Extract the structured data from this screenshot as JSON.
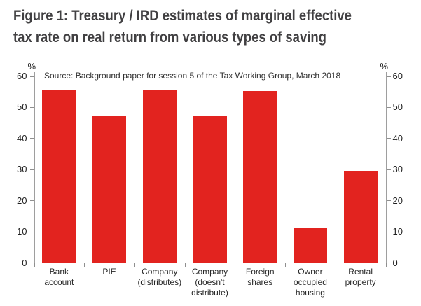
{
  "title_lines": [
    "Figure 1: Treasury / IRD estimates of marginal effective",
    "tax rate on real return from various types of saving"
  ],
  "source_note": "Source: Background paper for session 5 of the Tax Working Group, March 2018",
  "chart_data": {
    "type": "bar",
    "title": "Figure 1: Treasury / IRD estimates of marginal effective tax rate on real return from various types of saving",
    "source": "Source: Background paper for session 5 of the Tax Working Group, March 2018",
    "categories": [
      "Bank account",
      "PIE",
      "Company (distributes)",
      "Company (doesn't distribute)",
      "Foreign shares",
      "Owner occupied housing",
      "Rental property"
    ],
    "category_label_lines": [
      [
        "Bank",
        "account"
      ],
      [
        "PIE"
      ],
      [
        "Company",
        "(distributes)"
      ],
      [
        "Company",
        "(doesn't",
        "distribute)"
      ],
      [
        "Foreign",
        "shares"
      ],
      [
        "Owner",
        "occupied",
        "housing"
      ],
      [
        "Rental",
        "property"
      ]
    ],
    "values": [
      55.7,
      47.1,
      55.7,
      47.1,
      55.1,
      11.2,
      29.4
    ],
    "unit_label": "%",
    "xlabel": "",
    "ylabel": "%",
    "y_ticks": [
      0,
      10,
      20,
      30,
      40,
      50,
      60
    ],
    "ylim": [
      0,
      60
    ],
    "grid": false,
    "legend": "none",
    "axes": "mirrored left and right y-axes, ticks outward",
    "bar_color": "#e2231f"
  },
  "colors": {
    "bar": "#e2231f",
    "title_text": "#414042",
    "axis_line": "#9e9e9e",
    "tick_text": "#1f1f1f",
    "background": "#ffffff"
  }
}
